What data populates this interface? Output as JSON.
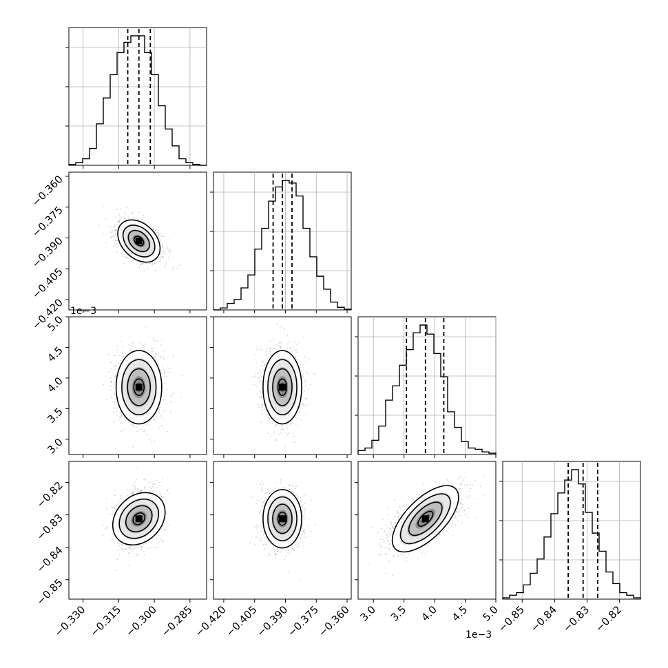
{
  "chart_data": {
    "type": "corner",
    "params": [
      {
        "range": [
          -0.336,
          -0.278
        ],
        "median": -0.3065,
        "q16": -0.3112,
        "q84": -0.3017
      },
      {
        "range": [
          -0.425,
          -0.358
        ],
        "median": -0.3915,
        "q16": -0.396,
        "q84": -0.3868
      },
      {
        "range": [
          2.75,
          5.0
        ],
        "median": 3.85,
        "q16": 3.54,
        "q84": 4.15
      },
      {
        "range": [
          -0.856,
          -0.8135
        ],
        "median": -0.8312,
        "q16": -0.8358,
        "q84": -0.8267
      }
    ],
    "histograms": [
      [
        0.006,
        0.02,
        0.05,
        0.13,
        0.32,
        0.52,
        0.7,
        0.87,
        0.95,
        1.0,
        1.0,
        0.87,
        0.7,
        0.46,
        0.28,
        0.15,
        0.05,
        0.02,
        0.006,
        0.0
      ],
      [
        0.0,
        0.015,
        0.05,
        0.08,
        0.17,
        0.27,
        0.47,
        0.63,
        0.84,
        0.95,
        1.0,
        0.98,
        0.88,
        0.63,
        0.41,
        0.26,
        0.16,
        0.06,
        0.02,
        0.005
      ],
      [
        0.03,
        0.05,
        0.11,
        0.22,
        0.42,
        0.53,
        0.69,
        0.81,
        0.94,
        1.0,
        0.93,
        0.78,
        0.6,
        0.33,
        0.21,
        0.1,
        0.05,
        0.04,
        0.02,
        0.01
      ],
      [
        0.01,
        0.03,
        0.05,
        0.11,
        0.2,
        0.31,
        0.48,
        0.66,
        0.82,
        0.92,
        1.0,
        0.89,
        0.67,
        0.51,
        0.37,
        0.21,
        0.12,
        0.05,
        0.03,
        0.01
      ]
    ],
    "correlations": [
      {
        "panel": [
          1,
          0
        ],
        "rho": -0.35
      },
      {
        "panel": [
          2,
          0
        ],
        "rho": 0.0
      },
      {
        "panel": [
          2,
          1
        ],
        "rho": 0.0
      },
      {
        "panel": [
          3,
          0
        ],
        "rho": 0.25
      },
      {
        "panel": [
          3,
          1
        ],
        "rho": 0.0
      },
      {
        "panel": [
          3,
          2
        ],
        "rho": 0.65
      }
    ],
    "ticks": {
      "x0": [
        "-0.330",
        "-0.315",
        "-0.300",
        "-0.285"
      ],
      "x1": [
        "-0.420",
        "-0.405",
        "-0.390",
        "-0.375",
        "-0.360"
      ],
      "x2": [
        "3.0",
        "3.5",
        "4.0",
        "4.5",
        "5.0"
      ],
      "x3": [
        "-0.85",
        "-0.84",
        "-0.83",
        "-0.82"
      ],
      "y1": [
        "-0.360",
        "-0.375",
        "-0.390",
        "-0.405",
        "-0.420"
      ],
      "y2": [
        "5.0",
        "4.5",
        "4.0",
        "3.5",
        "3.0"
      ],
      "y3": [
        "-0.82",
        "-0.83",
        "-0.84",
        "-0.85"
      ]
    },
    "ticks_as_text": {
      "x0": [
        "−0.330",
        "−0.315",
        "−0.300",
        "−0.285"
      ],
      "x1": [
        "−0.420",
        "−0.405",
        "−0.390",
        "−0.375",
        "−0.360"
      ],
      "x3": [
        "−0.85",
        "−0.84",
        "−0.83",
        "−0.82"
      ],
      "y1": [
        "−0.360",
        "−0.375",
        "−0.390",
        "−0.405",
        "−0.420"
      ],
      "y3": [
        "−0.82",
        "−0.83",
        "−0.84",
        "−0.85"
      ]
    },
    "offset_labels": {
      "x2": "1e−3",
      "y2": "1e−3"
    },
    "grid": true,
    "colors": {
      "hist": "#000000",
      "contour": "#000000",
      "points": "#808080"
    }
  }
}
